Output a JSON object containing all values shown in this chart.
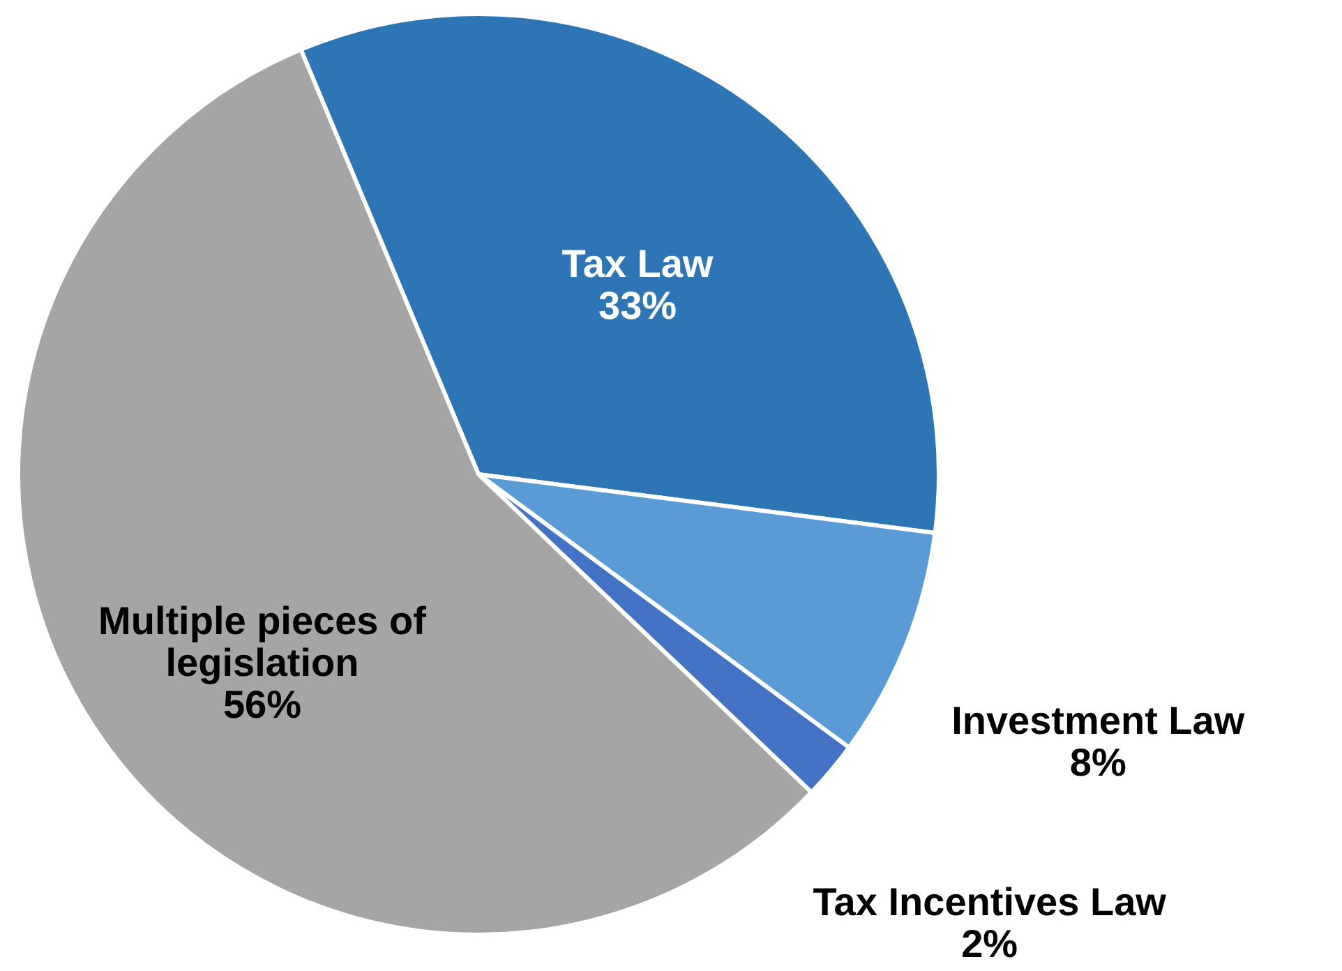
{
  "chart_data": {
    "type": "pie",
    "categories": [
      "Tax Law",
      "Investment Law",
      "Tax Incentives Law",
      "Multiple pieces of legislation"
    ],
    "values": [
      33,
      8,
      2,
      56
    ],
    "colors": [
      "#2e75b6",
      "#5b9bd5",
      "#4472c4",
      "#a5a5a5"
    ],
    "value_labels": [
      "33%",
      "8%",
      "2%",
      "56%"
    ]
  }
}
